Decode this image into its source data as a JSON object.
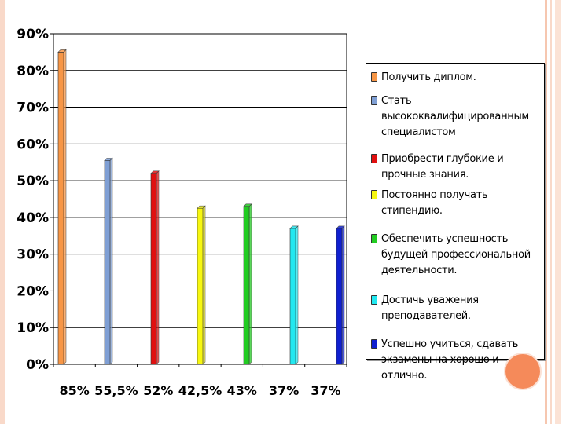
{
  "chart_data": {
    "type": "bar",
    "ylim": [
      0,
      90
    ],
    "yticks": [
      "0%",
      "10%",
      "20%",
      "30%",
      "40%",
      "50%",
      "60%",
      "70%",
      "80%",
      "90%"
    ],
    "grid": true,
    "legend_position": "right",
    "categories": [
      "85%",
      "55,5%",
      "52%",
      "42,5%",
      "43%",
      "37%",
      "37%"
    ],
    "values": [
      85,
      55.5,
      52,
      42.5,
      43,
      37,
      37
    ],
    "series": [
      {
        "name": "Получить диплом.",
        "value": 85,
        "color": "#f79646"
      },
      {
        "name": "Стать высококвалифицированным специалистом",
        "value": 55.5,
        "color": "#7f9fd4"
      },
      {
        "name": "Приобрести глубокие и прочные знания.",
        "value": 52,
        "color": "#e01010"
      },
      {
        "name": "Постоянно получать стипендию.",
        "value": 42.5,
        "color": "#f7f710"
      },
      {
        "name": "Обеспечить успешность будущей профессиональной деятельности.",
        "value": 43,
        "color": "#22cc22"
      },
      {
        "name": "Достичь уважения преподавателей.",
        "value": 37,
        "color": "#22e8f0"
      },
      {
        "name": "Успешно учиться, сдавать экзамены на хорошо и отлично.",
        "value": 37,
        "color": "#1020d0"
      }
    ]
  },
  "decor": {
    "stripe_color": "#f6c7b0",
    "circle_color": "#f58a5a"
  }
}
